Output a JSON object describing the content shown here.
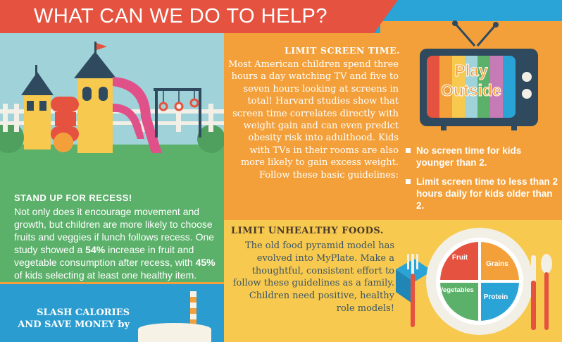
{
  "header": {
    "title": "WHAT CAN WE DO TO HELP?"
  },
  "recess": {
    "title": "STAND UP FOR RECESS!",
    "body_part1": "Not only does it encourage movement and growth, but children are more likely to choose fruits and veggies if lunch follows recess. One study showed a ",
    "stat1": "54%",
    "body_part2": " increase in fruit and vegetable consumption after recess, with ",
    "stat2": "45%",
    "body_part3": " of kids selecting at least one healthy item."
  },
  "slash": {
    "title": "SLASH CALORIES AND SAVE MONEY by"
  },
  "screen_time": {
    "title": "LIMIT SCREEN TIME.",
    "body": "Most American children spend three hours a day watching TV and five to seven hours looking at screens in total! Harvard studies show that screen time correlates directly with weight gain and can even predict obesity risk into adulthood. Kids with TVs in their rooms are also more likely to gain excess weight. Follow these basic guidelines:",
    "tv_line1": "Play",
    "tv_line2": "Outside",
    "guidelines": [
      "No screen time for kids younger than 2.",
      "Limit screen time to less than 2 hours daily for kids older than 2."
    ]
  },
  "foods": {
    "title": "LIMIT UNHEALTHY FOODS.",
    "body": "The old food pyramid model has evolved into MyPlate. Make a thoughtful, consistent effort to follow these guidelines as a family. Children need positive, healthy role models!",
    "plate": {
      "fruit": "Fruit",
      "grains": "Grains",
      "vegetables": "Vegetables",
      "protein": "Protein"
    }
  },
  "colors": {
    "red": "#e5523f",
    "orange": "#f3a03a",
    "yellow": "#f7c94f",
    "green": "#5bb06a",
    "blue": "#2a9ccf",
    "navy": "#2f4a5e"
  }
}
